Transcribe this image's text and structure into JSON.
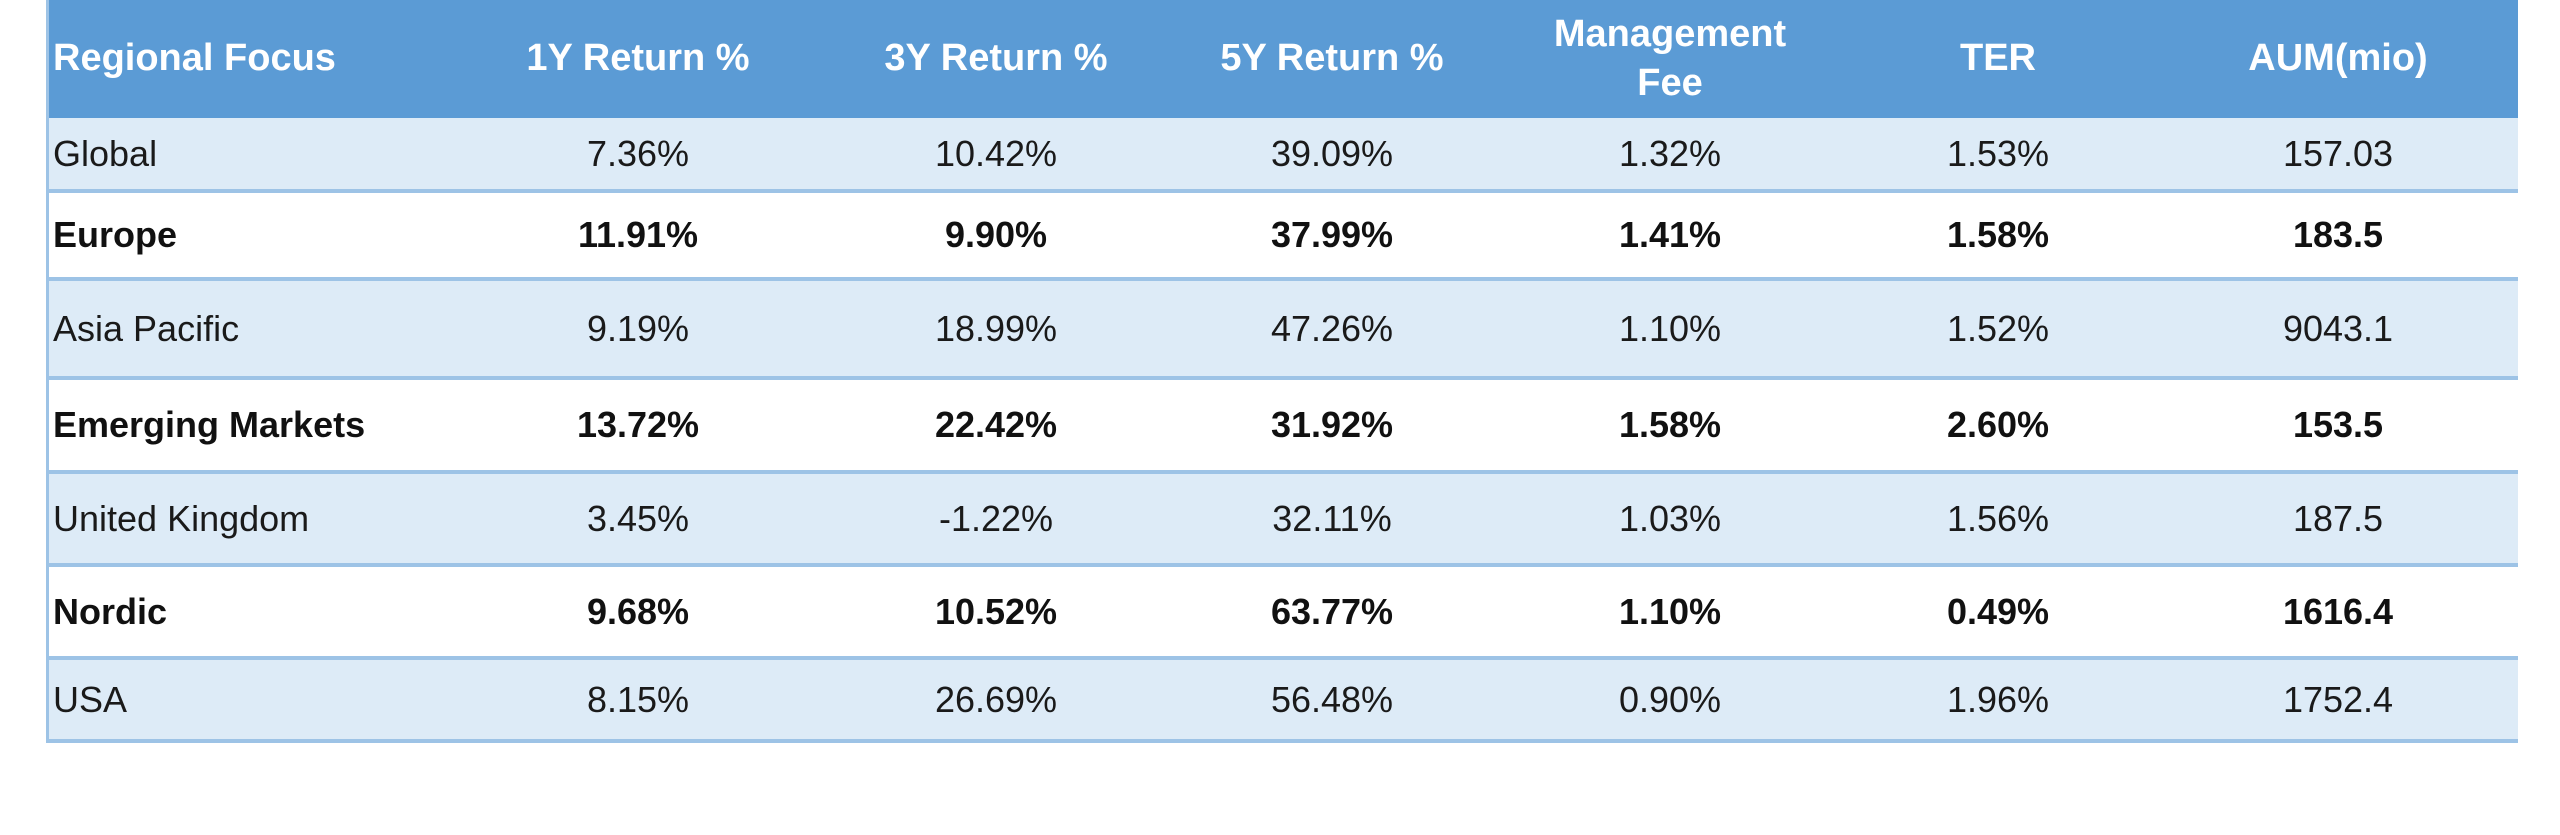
{
  "table": {
    "header": [
      "Regional Focus",
      "1Y Return %",
      "3Y Return %",
      "5Y Return %",
      "Management Fee",
      "TER",
      "AUM(mio)"
    ],
    "rows": [
      [
        "Global",
        "7.36%",
        "10.42%",
        "39.09%",
        "1.32%",
        "1.53%",
        "157.03"
      ],
      [
        "Europe",
        "11.91%",
        "9.90%",
        "37.99%",
        "1.41%",
        "1.58%",
        "183.5"
      ],
      [
        "Asia Pacific",
        "9.19%",
        "18.99%",
        "47.26%",
        "1.10%",
        "1.52%",
        "9043.1"
      ],
      [
        "Emerging Markets",
        "13.72%",
        "22.42%",
        "31.92%",
        "1.58%",
        "2.60%",
        "153.5"
      ],
      [
        "United Kingdom",
        "3.45%",
        "-1.22%",
        "32.11%",
        "1.03%",
        "1.56%",
        "187.5"
      ],
      [
        "Nordic",
        "9.68%",
        "10.52%",
        "63.77%",
        "1.10%",
        "0.49%",
        "1616.4"
      ],
      [
        "USA",
        "8.15%",
        "26.69%",
        "56.48%",
        "0.90%",
        "1.96%",
        "1752.4"
      ]
    ]
  }
}
